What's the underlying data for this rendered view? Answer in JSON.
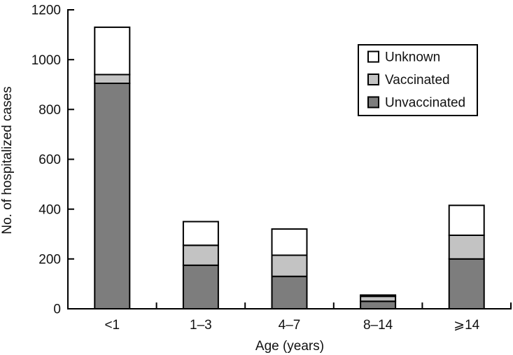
{
  "chart_data": {
    "type": "bar",
    "stacked": true,
    "title": "",
    "xlabel": "Age (years)",
    "ylabel": "No. of hospitalized cases",
    "categories": [
      "<1",
      "1–3",
      "4–7",
      "8–14",
      "⩾14"
    ],
    "series": [
      {
        "name": "Unvaccinated",
        "color": "#7d7d7d",
        "values": [
          905,
          175,
          130,
          30,
          200
        ]
      },
      {
        "name": "Vaccinated",
        "color": "#c3c3c3",
        "values": [
          35,
          80,
          85,
          20,
          95
        ]
      },
      {
        "name": "Unknown",
        "color": "#ffffff",
        "values": [
          190,
          95,
          105,
          5,
          120
        ]
      }
    ],
    "stack_totals": [
      1130,
      350,
      320,
      55,
      415
    ],
    "ylim": [
      0,
      1200
    ],
    "yticks": [
      0,
      200,
      400,
      600,
      800,
      1000,
      1200
    ],
    "grid": false,
    "legend": {
      "position": "top-right",
      "order": [
        "Unknown",
        "Vaccinated",
        "Unvaccinated"
      ]
    }
  },
  "colors": {
    "axis": "#000000",
    "bar_border": "#000000",
    "background": "#ffffff",
    "text": "#111111"
  }
}
